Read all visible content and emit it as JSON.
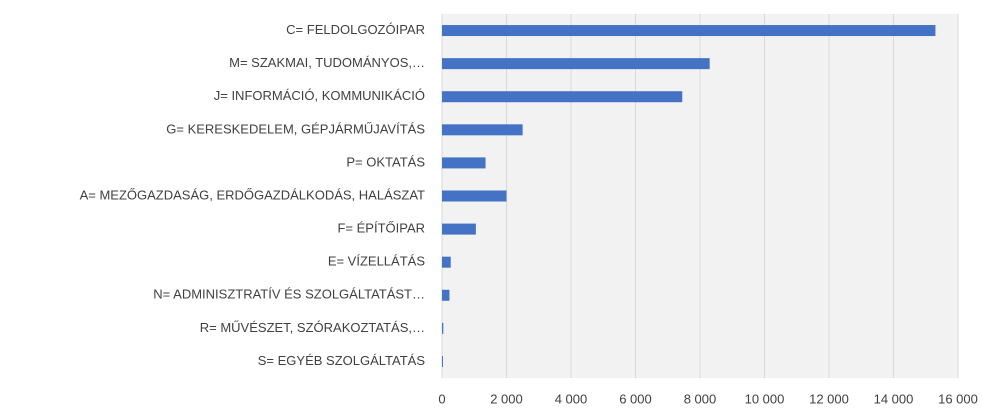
{
  "chart_data": {
    "type": "barh",
    "categories": [
      "C= FELDOLGOZÓIPAR",
      "M= SZAKMAI, TUDOMÁNYOS,…",
      "J= INFORMÁCIÓ, KOMMUNIKÁCIÓ",
      "G= KERESKEDELEM, GÉPJÁRMŰJAVÍTÁS",
      "P= OKTATÁS",
      "A= MEZŐGAZDASÁG, ERDŐGAZDÁLKODÁS, HALÁSZAT",
      "F= ÉPÍTŐIPAR",
      "E= VÍZELLÁTÁS",
      "N= ADMINISZTRATÍV ÉS SZOLGÁLTATÁST…",
      "R= MŰVÉSZET, SZÓRAKOZTATÁS,…",
      "S= EGYÉB SZOLGÁLTATÁS"
    ],
    "values": [
      15300,
      8300,
      7450,
      2500,
      1350,
      2000,
      1050,
      270,
      230,
      40,
      30
    ],
    "color": "#4472c4",
    "xlim": [
      0,
      16000
    ],
    "xticks": [
      0,
      {
        "value": 2000,
        "label": "2 000"
      },
      {
        "value": 4000,
        "label": "4 000"
      },
      {
        "value": 6000,
        "label": "6 000"
      },
      {
        "value": 8000,
        "label": "8 000"
      },
      {
        "value": 10000,
        "label": "10 000"
      },
      {
        "value": 12000,
        "label": "12 000"
      },
      {
        "value": 14000,
        "label": "14 000"
      },
      {
        "value": 16000,
        "label": "16 000"
      }
    ],
    "grid": true
  }
}
